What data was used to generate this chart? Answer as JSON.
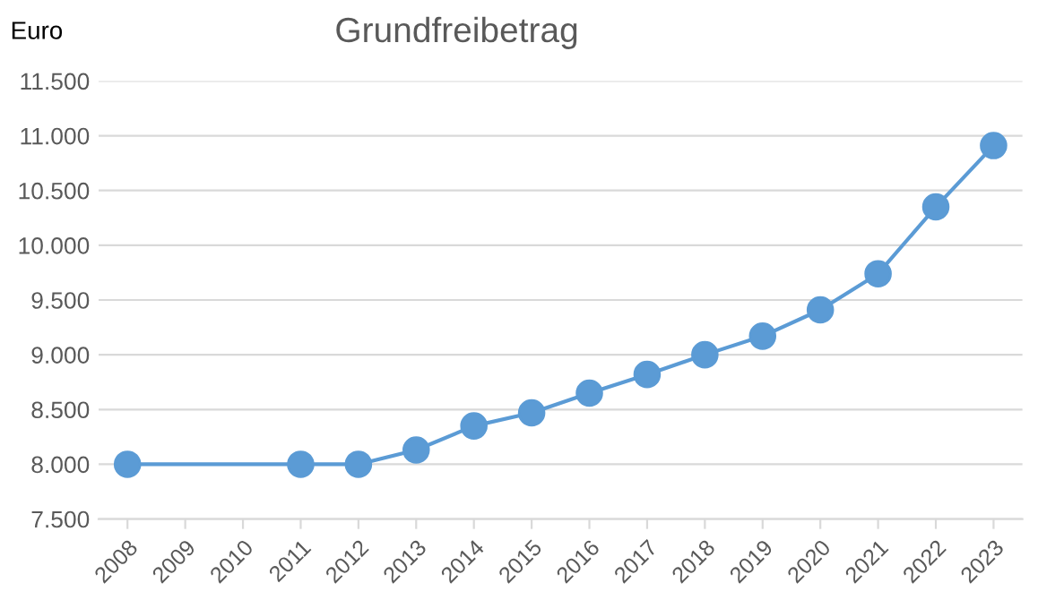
{
  "chart_data": {
    "type": "line",
    "title": "Grundfreibetrag",
    "ylabel": "Euro",
    "categories": [
      "2008",
      "2009",
      "2010",
      "2011",
      "2012",
      "2013",
      "2014",
      "2015",
      "2016",
      "2017",
      "2018",
      "2019",
      "2020",
      "2021",
      "2022",
      "2023"
    ],
    "series": [
      {
        "color": "#5b9bd5",
        "values": [
          8000,
          null,
          null,
          8000,
          8000,
          8130,
          8350,
          8470,
          8650,
          8820,
          9000,
          9170,
          9410,
          9740,
          10350,
          10910
        ]
      }
    ],
    "ylim": [
      7500,
      11500
    ],
    "yticks": [
      {
        "value": 7500,
        "label": "7.500"
      },
      {
        "value": 8000,
        "label": "8.000"
      },
      {
        "value": 8500,
        "label": "8.500"
      },
      {
        "value": 9000,
        "label": "9.000"
      },
      {
        "value": 9500,
        "label": "9.500"
      },
      {
        "value": 10000,
        "label": "10.000"
      },
      {
        "value": 10500,
        "label": "10.500"
      },
      {
        "value": 11000,
        "label": "11.000"
      },
      {
        "value": 11500,
        "label": "11.500"
      }
    ],
    "grid": true,
    "marker": "circle",
    "line_style": "solid",
    "legend": false
  }
}
